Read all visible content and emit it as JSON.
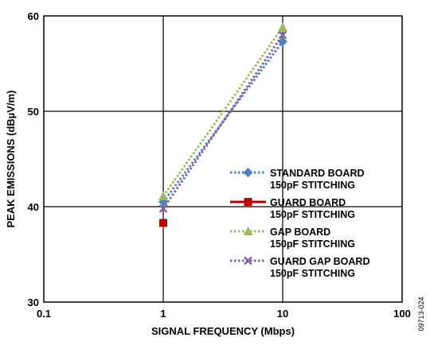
{
  "figure_code": "09713-024",
  "chart_data": {
    "type": "scatter",
    "title": "",
    "xlabel": "SIGNAL FREQUENCY (Mbps)",
    "ylabel": "PEAK EMISSIONS (dBµV/m)",
    "xscale": "log",
    "xlim": [
      0.1,
      100
    ],
    "ylim": [
      30,
      60
    ],
    "x_ticks": [
      0.1,
      1,
      10,
      100
    ],
    "x_tick_labels": [
      "0.1",
      "1",
      "10",
      "100"
    ],
    "y_ticks": [
      30,
      40,
      50,
      60
    ],
    "y_tick_labels": [
      "30",
      "40",
      "50",
      "60"
    ],
    "grid": true,
    "legend_position": "right-center",
    "series": [
      {
        "legend_lines": [
          "STANDARD BOARD",
          "150pF STITCHING"
        ],
        "x": [
          1,
          10
        ],
        "y": [
          40.5,
          57.3
        ],
        "color": "#4F81BD",
        "marker": "diamond",
        "line": "dotted"
      },
      {
        "legend_lines": [
          "GUARD BOARD",
          "150pF STITCHING"
        ],
        "x": [
          1
        ],
        "y": [
          38.3
        ],
        "color": "#C00000",
        "marker": "square",
        "line": "solid"
      },
      {
        "legend_lines": [
          "GAP BOARD",
          "150pF STITCHING"
        ],
        "x": [
          1,
          10
        ],
        "y": [
          41.1,
          58.8
        ],
        "color": "#9BBB59",
        "marker": "triangle",
        "line": "dotted"
      },
      {
        "legend_lines": [
          "GUARD GAP BOARD",
          "150pF STITCHING"
        ],
        "x": [
          1,
          10
        ],
        "y": [
          39.8,
          58.0
        ],
        "color": "#8064A2",
        "marker": "x",
        "line": "dotted"
      }
    ]
  }
}
